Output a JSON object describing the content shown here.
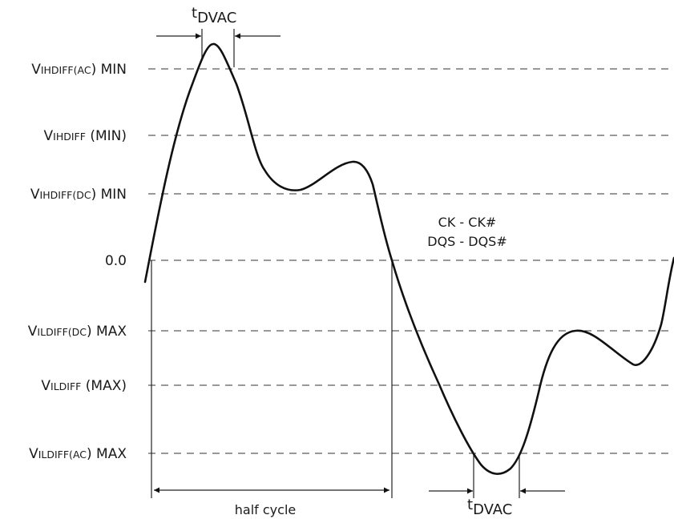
{
  "levels": [
    {
      "main": "V",
      "sub": "IHDIFF(",
      "sc": "AC",
      "tail": ") MIN"
    },
    {
      "main": "V",
      "sub": "IHDIFF",
      "sc": "",
      "tail": " (MIN)"
    },
    {
      "main": "V",
      "sub": "IHDIFF(",
      "sc": "DC",
      "tail": ") MIN"
    },
    {
      "main": "",
      "sub": "",
      "sc": "",
      "tail": "0.0"
    },
    {
      "main": "V",
      "sub": "ILDIFF(",
      "sc": "DC",
      "tail": ") MAX"
    },
    {
      "main": "V",
      "sub": "ILDIFF",
      "sc": "",
      "tail": " (MAX)"
    },
    {
      "main": "V",
      "sub": "ILDIFF(",
      "sc": "AC",
      "tail": ") MAX"
    }
  ],
  "signal_label_1": "CK - CK#",
  "signal_label_2": "DQS - DQS#",
  "tdvac_top": {
    "t": "t",
    "sub": "DVAC"
  },
  "tdvac_bottom": {
    "t": "t",
    "sub": "DVAC"
  },
  "half_cycle_label": "half cycle"
}
